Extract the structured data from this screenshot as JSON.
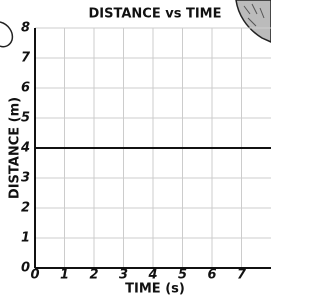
{
  "chart_data": {
    "type": "line",
    "title": "DISTANCE vs TIME",
    "x_label": "TIME (s)",
    "y_label": "DISTANCE (m)",
    "x": [
      0,
      8
    ],
    "series": [
      {
        "color": "#111111",
        "values": [
          4,
          4
        ]
      }
    ],
    "xlim": [
      0,
      8
    ],
    "xticks": [
      0,
      1,
      2,
      3,
      4,
      5,
      6,
      7
    ],
    "ylim": [
      0,
      8
    ],
    "yticks": [
      0,
      1,
      2,
      3,
      4,
      5,
      6,
      7,
      8
    ],
    "grid": true
  }
}
